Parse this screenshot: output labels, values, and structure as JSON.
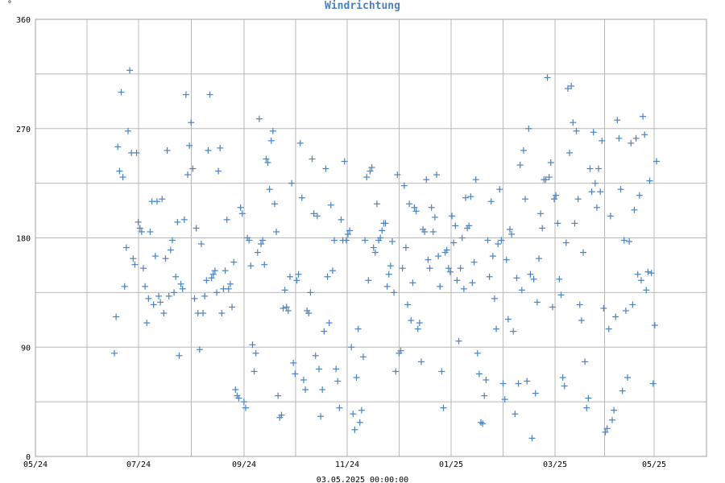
{
  "chart_data": {
    "type": "scatter",
    "title": "Windrichtung",
    "unit_label": "°",
    "footer": "03.05.2025 00:00:00",
    "x_ticks": [
      "05/24",
      "07/24",
      "09/24",
      "11/24",
      "01/25",
      "03/25",
      "05/25"
    ],
    "ylim": [
      0,
      360
    ],
    "y_ticks": [
      0,
      90,
      180,
      270,
      360
    ],
    "grid": true,
    "marker": "plus",
    "color": "#4a82c0",
    "grid_color": "#b8b8b8",
    "series": [
      {
        "values": [
          85,
          115,
          255,
          235,
          300,
          230,
          140,
          172,
          268,
          318,
          250,
          163,
          158,
          250,
          193,
          188,
          185,
          155,
          140,
          110,
          130,
          185,
          210,
          125,
          165,
          210,
          132,
          127,
          212,
          118,
          163,
          252,
          132,
          170,
          178,
          135,
          148,
          193,
          83,
          142,
          138,
          195,
          298,
          232,
          256,
          275,
          237,
          130,
          188,
          118,
          88,
          175,
          118,
          132,
          145,
          252,
          298,
          147,
          150,
          153,
          135,
          235,
          254,
          118,
          138,
          153,
          195,
          138,
          142,
          123,
          160,
          55,
          50,
          48,
          205,
          200,
          45,
          40,
          180,
          178,
          157,
          92,
          70,
          85,
          168,
          278,
          175,
          178,
          158,
          245,
          242,
          220,
          260,
          268,
          208,
          185,
          50,
          32,
          34,
          122,
          137,
          123,
          120,
          148,
          225,
          77,
          68,
          145,
          150,
          258,
          213,
          63,
          55,
          120,
          118,
          135,
          245,
          200,
          83,
          198,
          72,
          33,
          55,
          103,
          237,
          148,
          110,
          207,
          153,
          178,
          72,
          62,
          40,
          195,
          178,
          243,
          178,
          183,
          186,
          90,
          35,
          22,
          65,
          105,
          28,
          38,
          82,
          178,
          230,
          145,
          235,
          238,
          172,
          168,
          208,
          178,
          180,
          186,
          192,
          192,
          140,
          150,
          157,
          177,
          135,
          70,
          232,
          85,
          87,
          155,
          223,
          172,
          125,
          208,
          112,
          143,
          205,
          202,
          105,
          110,
          78,
          187,
          185,
          228,
          162,
          155,
          205,
          185,
          197,
          232,
          165,
          140,
          70,
          40,
          168,
          170,
          155,
          152,
          198,
          176,
          190,
          145,
          95,
          155,
          180,
          138,
          213,
          188,
          190,
          214,
          143,
          160,
          228,
          85,
          68,
          28,
          27,
          50,
          63,
          178,
          148,
          210,
          165,
          130,
          105,
          175,
          220,
          178,
          60,
          47,
          162,
          113,
          187,
          183,
          103,
          35,
          147,
          60,
          240,
          137,
          252,
          212,
          62,
          270,
          150,
          15,
          146,
          52,
          127,
          163,
          200,
          188,
          228,
          228,
          312,
          230,
          242,
          123,
          212,
          215,
          192,
          146,
          133,
          65,
          58,
          176,
          303,
          250,
          305,
          275,
          192,
          268,
          212,
          125,
          112,
          168,
          78,
          40,
          48,
          237,
          218,
          267,
          225,
          205,
          237,
          218,
          260,
          122,
          20,
          23,
          105,
          198,
          30,
          38,
          115,
          277,
          262,
          220,
          54,
          178,
          120,
          65,
          177,
          258,
          125,
          203,
          262,
          150,
          215,
          145,
          280,
          265,
          137,
          152,
          227,
          151,
          60,
          108,
          243
        ]
      }
    ]
  }
}
